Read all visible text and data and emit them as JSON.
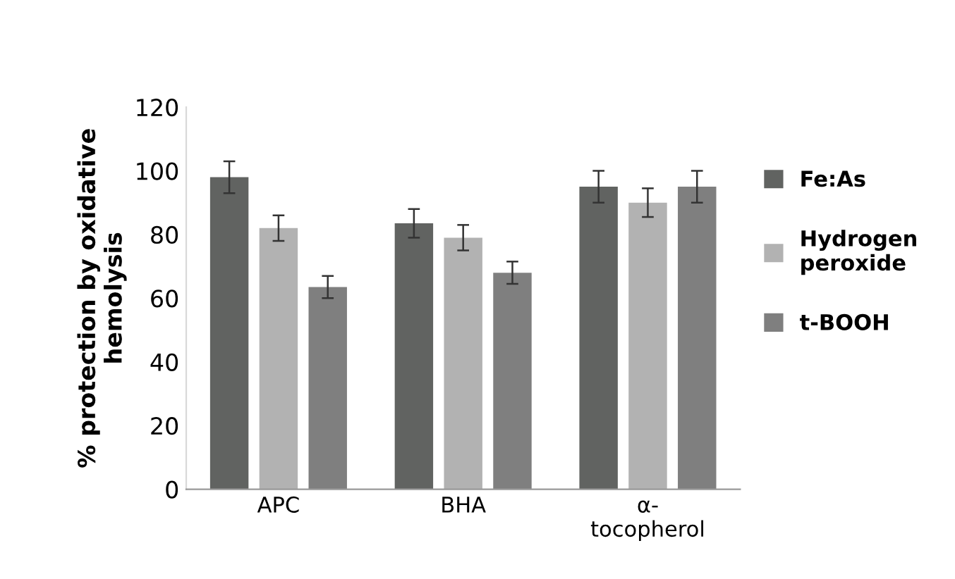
{
  "chart_data": {
    "type": "bar",
    "ylabel": "% protection by oxidative\nhemolysis",
    "categories": [
      "APC",
      "BHA",
      "α-\ntocopherol"
    ],
    "series": [
      {
        "name": "Fe:As",
        "color": "#616361",
        "values": [
          98,
          83.5,
          95
        ],
        "errors": [
          5,
          4.5,
          5
        ]
      },
      {
        "name": "Hydrogen\nperoxide",
        "color": "#b2b2b2",
        "values": [
          82,
          79,
          90
        ],
        "errors": [
          4,
          4,
          4.5
        ]
      },
      {
        "name": "t-BOOH",
        "color": "#7f7f7f",
        "values": [
          63.5,
          68,
          95
        ],
        "errors": [
          3.5,
          3.5,
          5
        ]
      }
    ],
    "ylim": [
      0,
      120
    ],
    "yticks": [
      0,
      20,
      40,
      60,
      80,
      100,
      120
    ],
    "grid": false,
    "legend": "right"
  }
}
